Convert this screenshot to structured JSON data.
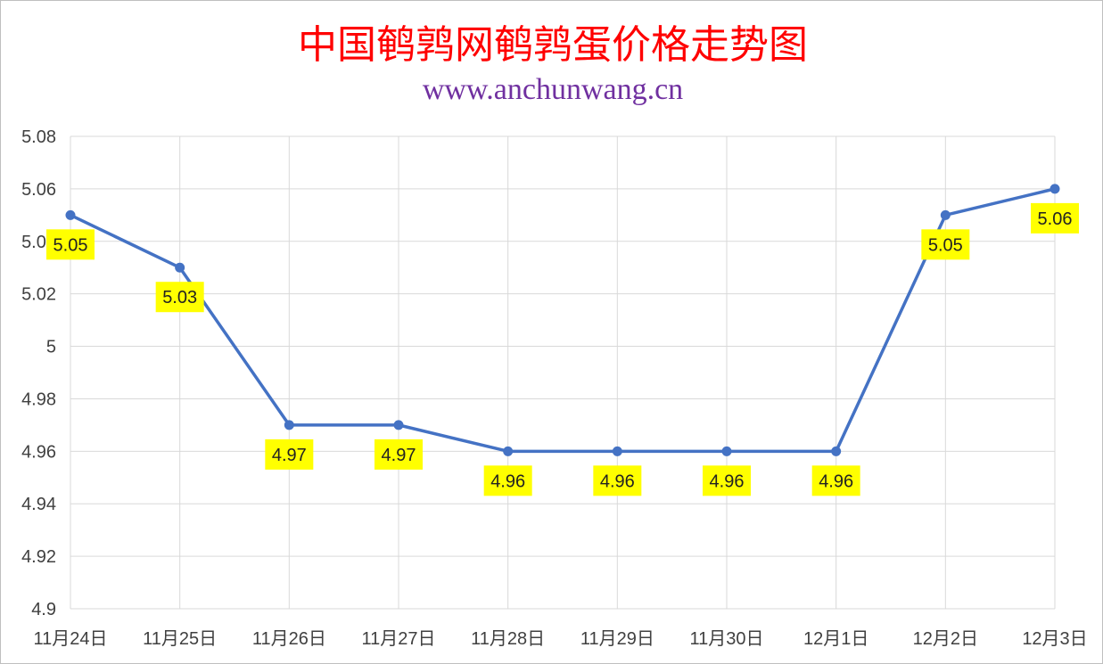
{
  "chart_data": {
    "type": "line",
    "title": "中国鹌鹑网鹌鹑蛋价格走势图",
    "subtitle": "www.anchunwang.cn",
    "categories": [
      "11月24日",
      "11月25日",
      "11月26日",
      "11月27日",
      "11月28日",
      "11月29日",
      "11月30日",
      "12月1日",
      "12月2日",
      "12月3日"
    ],
    "series": [
      {
        "values": [
          5.05,
          5.03,
          4.97,
          4.97,
          4.96,
          4.96,
          4.96,
          4.96,
          5.05,
          5.06
        ]
      }
    ],
    "data_labels": [
      "5.05",
      "5.03",
      "4.97",
      "4.97",
      "4.96",
      "4.96",
      "4.96",
      "4.96",
      "5.05",
      "5.06"
    ],
    "ylim": [
      4.9,
      5.08
    ],
    "yticks": [
      "4.9",
      "4.92",
      "4.94",
      "4.96",
      "4.98",
      "5",
      "5.02",
      "5.04",
      "5.06",
      "5.08"
    ],
    "grid": true,
    "legend": "none",
    "colors": {
      "line": "#4472c4",
      "label_bg": "#ffff00",
      "title": "#ff0000",
      "subtitle": "#7030a0",
      "grid": "#d9d9d9"
    }
  }
}
